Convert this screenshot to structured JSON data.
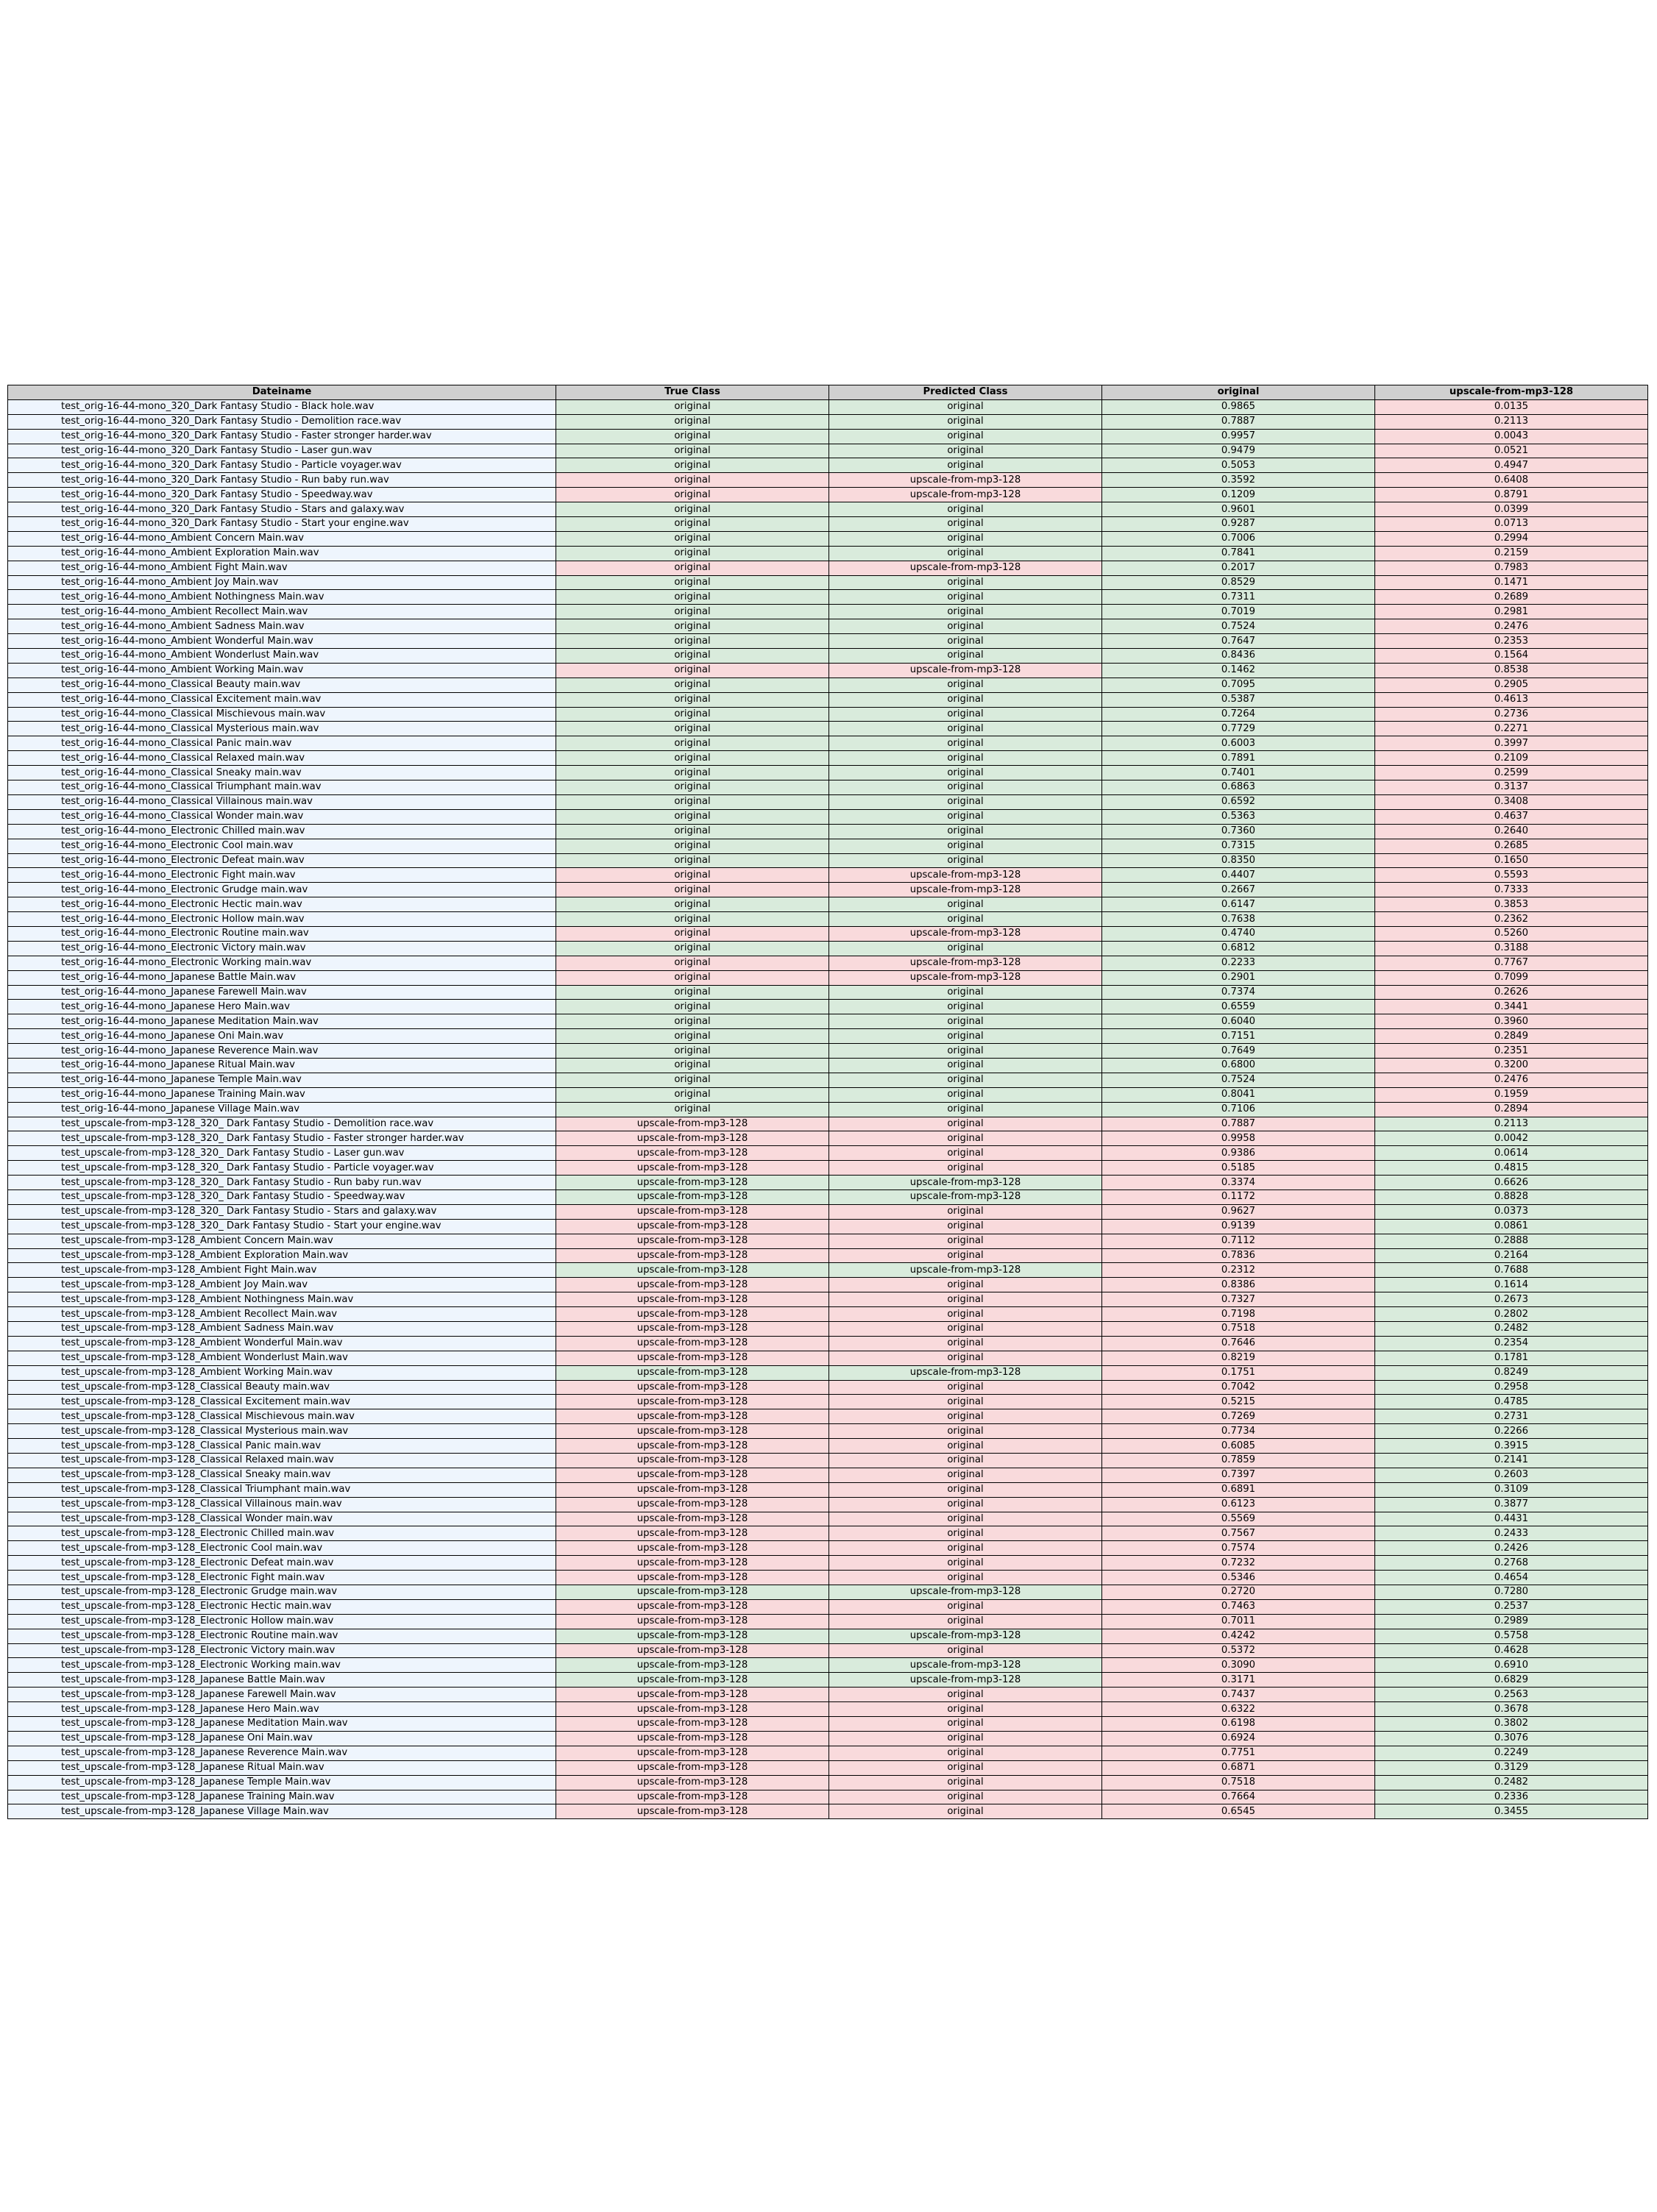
{
  "colors": {
    "header": "#d0d0d0",
    "filename": "#eef5fd",
    "correct": "#d9ebdc",
    "incorrect": "#f9dadc"
  },
  "columns": [
    "Dateiname",
    "True Class",
    "Predicted Class",
    "original",
    "upscale-from-mp3-128"
  ],
  "rows": [
    [
      "test_orig-16-44-mono_320_Dark Fantasy Studio - Black hole.wav",
      "original",
      "original",
      "0.9865",
      "0.0135"
    ],
    [
      "test_orig-16-44-mono_320_Dark Fantasy Studio - Demolition race.wav",
      "original",
      "original",
      "0.7887",
      "0.2113"
    ],
    [
      "test_orig-16-44-mono_320_Dark Fantasy Studio - Faster stronger harder.wav",
      "original",
      "original",
      "0.9957",
      "0.0043"
    ],
    [
      "test_orig-16-44-mono_320_Dark Fantasy Studio - Laser gun.wav",
      "original",
      "original",
      "0.9479",
      "0.0521"
    ],
    [
      "test_orig-16-44-mono_320_Dark Fantasy Studio - Particle voyager.wav",
      "original",
      "original",
      "0.5053",
      "0.4947"
    ],
    [
      "test_orig-16-44-mono_320_Dark Fantasy Studio - Run baby run.wav",
      "original",
      "upscale-from-mp3-128",
      "0.3592",
      "0.6408"
    ],
    [
      "test_orig-16-44-mono_320_Dark Fantasy Studio - Speedway.wav",
      "original",
      "upscale-from-mp3-128",
      "0.1209",
      "0.8791"
    ],
    [
      "test_orig-16-44-mono_320_Dark Fantasy Studio - Stars and galaxy.wav",
      "original",
      "original",
      "0.9601",
      "0.0399"
    ],
    [
      "test_orig-16-44-mono_320_Dark Fantasy Studio - Start your engine.wav",
      "original",
      "original",
      "0.9287",
      "0.0713"
    ],
    [
      "test_orig-16-44-mono_Ambient Concern Main.wav",
      "original",
      "original",
      "0.7006",
      "0.2994"
    ],
    [
      "test_orig-16-44-mono_Ambient Exploration Main.wav",
      "original",
      "original",
      "0.7841",
      "0.2159"
    ],
    [
      "test_orig-16-44-mono_Ambient Fight Main.wav",
      "original",
      "upscale-from-mp3-128",
      "0.2017",
      "0.7983"
    ],
    [
      "test_orig-16-44-mono_Ambient Joy Main.wav",
      "original",
      "original",
      "0.8529",
      "0.1471"
    ],
    [
      "test_orig-16-44-mono_Ambient Nothingness Main.wav",
      "original",
      "original",
      "0.7311",
      "0.2689"
    ],
    [
      "test_orig-16-44-mono_Ambient Recollect Main.wav",
      "original",
      "original",
      "0.7019",
      "0.2981"
    ],
    [
      "test_orig-16-44-mono_Ambient Sadness Main.wav",
      "original",
      "original",
      "0.7524",
      "0.2476"
    ],
    [
      "test_orig-16-44-mono_Ambient Wonderful Main.wav",
      "original",
      "original",
      "0.7647",
      "0.2353"
    ],
    [
      "test_orig-16-44-mono_Ambient Wonderlust Main.wav",
      "original",
      "original",
      "0.8436",
      "0.1564"
    ],
    [
      "test_orig-16-44-mono_Ambient Working Main.wav",
      "original",
      "upscale-from-mp3-128",
      "0.1462",
      "0.8538"
    ],
    [
      "test_orig-16-44-mono_Classical Beauty main.wav",
      "original",
      "original",
      "0.7095",
      "0.2905"
    ],
    [
      "test_orig-16-44-mono_Classical Excitement main.wav",
      "original",
      "original",
      "0.5387",
      "0.4613"
    ],
    [
      "test_orig-16-44-mono_Classical Mischievous main.wav",
      "original",
      "original",
      "0.7264",
      "0.2736"
    ],
    [
      "test_orig-16-44-mono_Classical Mysterious main.wav",
      "original",
      "original",
      "0.7729",
      "0.2271"
    ],
    [
      "test_orig-16-44-mono_Classical Panic main.wav",
      "original",
      "original",
      "0.6003",
      "0.3997"
    ],
    [
      "test_orig-16-44-mono_Classical Relaxed main.wav",
      "original",
      "original",
      "0.7891",
      "0.2109"
    ],
    [
      "test_orig-16-44-mono_Classical Sneaky main.wav",
      "original",
      "original",
      "0.7401",
      "0.2599"
    ],
    [
      "test_orig-16-44-mono_Classical Triumphant main.wav",
      "original",
      "original",
      "0.6863",
      "0.3137"
    ],
    [
      "test_orig-16-44-mono_Classical Villainous main.wav",
      "original",
      "original",
      "0.6592",
      "0.3408"
    ],
    [
      "test_orig-16-44-mono_Classical Wonder main.wav",
      "original",
      "original",
      "0.5363",
      "0.4637"
    ],
    [
      "test_orig-16-44-mono_Electronic Chilled main.wav",
      "original",
      "original",
      "0.7360",
      "0.2640"
    ],
    [
      "test_orig-16-44-mono_Electronic Cool main.wav",
      "original",
      "original",
      "0.7315",
      "0.2685"
    ],
    [
      "test_orig-16-44-mono_Electronic Defeat main.wav",
      "original",
      "original",
      "0.8350",
      "0.1650"
    ],
    [
      "test_orig-16-44-mono_Electronic Fight main.wav",
      "original",
      "upscale-from-mp3-128",
      "0.4407",
      "0.5593"
    ],
    [
      "test_orig-16-44-mono_Electronic Grudge main.wav",
      "original",
      "upscale-from-mp3-128",
      "0.2667",
      "0.7333"
    ],
    [
      "test_orig-16-44-mono_Electronic Hectic main.wav",
      "original",
      "original",
      "0.6147",
      "0.3853"
    ],
    [
      "test_orig-16-44-mono_Electronic Hollow main.wav",
      "original",
      "original",
      "0.7638",
      "0.2362"
    ],
    [
      "test_orig-16-44-mono_Electronic Routine main.wav",
      "original",
      "upscale-from-mp3-128",
      "0.4740",
      "0.5260"
    ],
    [
      "test_orig-16-44-mono_Electronic Victory main.wav",
      "original",
      "original",
      "0.6812",
      "0.3188"
    ],
    [
      "test_orig-16-44-mono_Electronic Working main.wav",
      "original",
      "upscale-from-mp3-128",
      "0.2233",
      "0.7767"
    ],
    [
      "test_orig-16-44-mono_Japanese Battle Main.wav",
      "original",
      "upscale-from-mp3-128",
      "0.2901",
      "0.7099"
    ],
    [
      "test_orig-16-44-mono_Japanese Farewell Main.wav",
      "original",
      "original",
      "0.7374",
      "0.2626"
    ],
    [
      "test_orig-16-44-mono_Japanese Hero Main.wav",
      "original",
      "original",
      "0.6559",
      "0.3441"
    ],
    [
      "test_orig-16-44-mono_Japanese Meditation Main.wav",
      "original",
      "original",
      "0.6040",
      "0.3960"
    ],
    [
      "test_orig-16-44-mono_Japanese Oni Main.wav",
      "original",
      "original",
      "0.7151",
      "0.2849"
    ],
    [
      "test_orig-16-44-mono_Japanese Reverence Main.wav",
      "original",
      "original",
      "0.7649",
      "0.2351"
    ],
    [
      "test_orig-16-44-mono_Japanese Ritual Main.wav",
      "original",
      "original",
      "0.6800",
      "0.3200"
    ],
    [
      "test_orig-16-44-mono_Japanese Temple Main.wav",
      "original",
      "original",
      "0.7524",
      "0.2476"
    ],
    [
      "test_orig-16-44-mono_Japanese Training Main.wav",
      "original",
      "original",
      "0.8041",
      "0.1959"
    ],
    [
      "test_orig-16-44-mono_Japanese Village Main.wav",
      "original",
      "original",
      "0.7106",
      "0.2894"
    ],
    [
      "test_upscale-from-mp3-128_320_ Dark Fantasy Studio - Demolition race.wav",
      "upscale-from-mp3-128",
      "original",
      "0.7887",
      "0.2113"
    ],
    [
      "test_upscale-from-mp3-128_320_ Dark Fantasy Studio - Faster stronger harder.wav",
      "upscale-from-mp3-128",
      "original",
      "0.9958",
      "0.0042"
    ],
    [
      "test_upscale-from-mp3-128_320_ Dark Fantasy Studio - Laser gun.wav",
      "upscale-from-mp3-128",
      "original",
      "0.9386",
      "0.0614"
    ],
    [
      "test_upscale-from-mp3-128_320_ Dark Fantasy Studio - Particle voyager.wav",
      "upscale-from-mp3-128",
      "original",
      "0.5185",
      "0.4815"
    ],
    [
      "test_upscale-from-mp3-128_320_ Dark Fantasy Studio - Run baby run.wav",
      "upscale-from-mp3-128",
      "upscale-from-mp3-128",
      "0.3374",
      "0.6626"
    ],
    [
      "test_upscale-from-mp3-128_320_ Dark Fantasy Studio - Speedway.wav",
      "upscale-from-mp3-128",
      "upscale-from-mp3-128",
      "0.1172",
      "0.8828"
    ],
    [
      "test_upscale-from-mp3-128_320_ Dark Fantasy Studio - Stars and galaxy.wav",
      "upscale-from-mp3-128",
      "original",
      "0.9627",
      "0.0373"
    ],
    [
      "test_upscale-from-mp3-128_320_ Dark Fantasy Studio - Start your engine.wav",
      "upscale-from-mp3-128",
      "original",
      "0.9139",
      "0.0861"
    ],
    [
      "test_upscale-from-mp3-128_Ambient Concern Main.wav",
      "upscale-from-mp3-128",
      "original",
      "0.7112",
      "0.2888"
    ],
    [
      "test_upscale-from-mp3-128_Ambient Exploration Main.wav",
      "upscale-from-mp3-128",
      "original",
      "0.7836",
      "0.2164"
    ],
    [
      "test_upscale-from-mp3-128_Ambient Fight Main.wav",
      "upscale-from-mp3-128",
      "upscale-from-mp3-128",
      "0.2312",
      "0.7688"
    ],
    [
      "test_upscale-from-mp3-128_Ambient Joy Main.wav",
      "upscale-from-mp3-128",
      "original",
      "0.8386",
      "0.1614"
    ],
    [
      "test_upscale-from-mp3-128_Ambient Nothingness Main.wav",
      "upscale-from-mp3-128",
      "original",
      "0.7327",
      "0.2673"
    ],
    [
      "test_upscale-from-mp3-128_Ambient Recollect Main.wav",
      "upscale-from-mp3-128",
      "original",
      "0.7198",
      "0.2802"
    ],
    [
      "test_upscale-from-mp3-128_Ambient Sadness Main.wav",
      "upscale-from-mp3-128",
      "original",
      "0.7518",
      "0.2482"
    ],
    [
      "test_upscale-from-mp3-128_Ambient Wonderful Main.wav",
      "upscale-from-mp3-128",
      "original",
      "0.7646",
      "0.2354"
    ],
    [
      "test_upscale-from-mp3-128_Ambient Wonderlust Main.wav",
      "upscale-from-mp3-128",
      "original",
      "0.8219",
      "0.1781"
    ],
    [
      "test_upscale-from-mp3-128_Ambient Working Main.wav",
      "upscale-from-mp3-128",
      "upscale-from-mp3-128",
      "0.1751",
      "0.8249"
    ],
    [
      "test_upscale-from-mp3-128_Classical Beauty main.wav",
      "upscale-from-mp3-128",
      "original",
      "0.7042",
      "0.2958"
    ],
    [
      "test_upscale-from-mp3-128_Classical Excitement main.wav",
      "upscale-from-mp3-128",
      "original",
      "0.5215",
      "0.4785"
    ],
    [
      "test_upscale-from-mp3-128_Classical Mischievous main.wav",
      "upscale-from-mp3-128",
      "original",
      "0.7269",
      "0.2731"
    ],
    [
      "test_upscale-from-mp3-128_Classical Mysterious main.wav",
      "upscale-from-mp3-128",
      "original",
      "0.7734",
      "0.2266"
    ],
    [
      "test_upscale-from-mp3-128_Classical Panic main.wav",
      "upscale-from-mp3-128",
      "original",
      "0.6085",
      "0.3915"
    ],
    [
      "test_upscale-from-mp3-128_Classical Relaxed main.wav",
      "upscale-from-mp3-128",
      "original",
      "0.7859",
      "0.2141"
    ],
    [
      "test_upscale-from-mp3-128_Classical Sneaky main.wav",
      "upscale-from-mp3-128",
      "original",
      "0.7397",
      "0.2603"
    ],
    [
      "test_upscale-from-mp3-128_Classical Triumphant main.wav",
      "upscale-from-mp3-128",
      "original",
      "0.6891",
      "0.3109"
    ],
    [
      "test_upscale-from-mp3-128_Classical Villainous main.wav",
      "upscale-from-mp3-128",
      "original",
      "0.6123",
      "0.3877"
    ],
    [
      "test_upscale-from-mp3-128_Classical Wonder main.wav",
      "upscale-from-mp3-128",
      "original",
      "0.5569",
      "0.4431"
    ],
    [
      "test_upscale-from-mp3-128_Electronic Chilled main.wav",
      "upscale-from-mp3-128",
      "original",
      "0.7567",
      "0.2433"
    ],
    [
      "test_upscale-from-mp3-128_Electronic Cool main.wav",
      "upscale-from-mp3-128",
      "original",
      "0.7574",
      "0.2426"
    ],
    [
      "test_upscale-from-mp3-128_Electronic Defeat main.wav",
      "upscale-from-mp3-128",
      "original",
      "0.7232",
      "0.2768"
    ],
    [
      "test_upscale-from-mp3-128_Electronic Fight main.wav",
      "upscale-from-mp3-128",
      "original",
      "0.5346",
      "0.4654"
    ],
    [
      "test_upscale-from-mp3-128_Electronic Grudge main.wav",
      "upscale-from-mp3-128",
      "upscale-from-mp3-128",
      "0.2720",
      "0.7280"
    ],
    [
      "test_upscale-from-mp3-128_Electronic Hectic main.wav",
      "upscale-from-mp3-128",
      "original",
      "0.7463",
      "0.2537"
    ],
    [
      "test_upscale-from-mp3-128_Electronic Hollow main.wav",
      "upscale-from-mp3-128",
      "original",
      "0.7011",
      "0.2989"
    ],
    [
      "test_upscale-from-mp3-128_Electronic Routine main.wav",
      "upscale-from-mp3-128",
      "upscale-from-mp3-128",
      "0.4242",
      "0.5758"
    ],
    [
      "test_upscale-from-mp3-128_Electronic Victory main.wav",
      "upscale-from-mp3-128",
      "original",
      "0.5372",
      "0.4628"
    ],
    [
      "test_upscale-from-mp3-128_Electronic Working main.wav",
      "upscale-from-mp3-128",
      "upscale-from-mp3-128",
      "0.3090",
      "0.6910"
    ],
    [
      "test_upscale-from-mp3-128_Japanese Battle Main.wav",
      "upscale-from-mp3-128",
      "upscale-from-mp3-128",
      "0.3171",
      "0.6829"
    ],
    [
      "test_upscale-from-mp3-128_Japanese Farewell Main.wav",
      "upscale-from-mp3-128",
      "original",
      "0.7437",
      "0.2563"
    ],
    [
      "test_upscale-from-mp3-128_Japanese Hero Main.wav",
      "upscale-from-mp3-128",
      "original",
      "0.6322",
      "0.3678"
    ],
    [
      "test_upscale-from-mp3-128_Japanese Meditation Main.wav",
      "upscale-from-mp3-128",
      "original",
      "0.6198",
      "0.3802"
    ],
    [
      "test_upscale-from-mp3-128_Japanese Oni Main.wav",
      "upscale-from-mp3-128",
      "original",
      "0.6924",
      "0.3076"
    ],
    [
      "test_upscale-from-mp3-128_Japanese Reverence Main.wav",
      "upscale-from-mp3-128",
      "original",
      "0.7751",
      "0.2249"
    ],
    [
      "test_upscale-from-mp3-128_Japanese Ritual Main.wav",
      "upscale-from-mp3-128",
      "original",
      "0.6871",
      "0.3129"
    ],
    [
      "test_upscale-from-mp3-128_Japanese Temple Main.wav",
      "upscale-from-mp3-128",
      "original",
      "0.7518",
      "0.2482"
    ],
    [
      "test_upscale-from-mp3-128_Japanese Training Main.wav",
      "upscale-from-mp3-128",
      "original",
      "0.7664",
      "0.2336"
    ],
    [
      "test_upscale-from-mp3-128_Japanese Village Main.wav",
      "upscale-from-mp3-128",
      "original",
      "0.6545",
      "0.3455"
    ]
  ]
}
